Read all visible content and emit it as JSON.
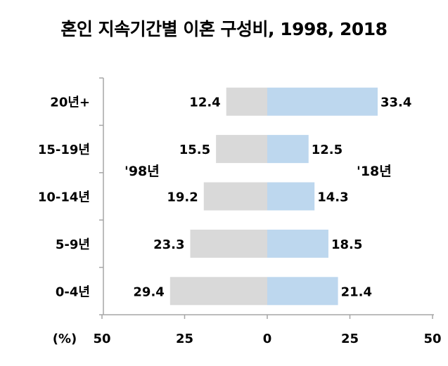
{
  "chart_data": {
    "type": "bar",
    "orientation": "horizontal-butterfly",
    "title": "혼인 지속기간별 이혼 구성비, 1998, 2018",
    "categories": [
      "20년+",
      "15-19년",
      "10-14년",
      "5-9년",
      "0-4년"
    ],
    "series": [
      {
        "name": "'98년",
        "side": "left",
        "color": "#d9d9d9",
        "values": [
          12.4,
          15.5,
          19.2,
          23.3,
          29.4
        ]
      },
      {
        "name": "'18년",
        "side": "right",
        "color": "#bdd7ee",
        "values": [
          33.4,
          12.5,
          14.3,
          18.5,
          21.4
        ]
      }
    ],
    "x_ticks": [
      "50",
      "25",
      "0",
      "25",
      "50"
    ],
    "x_unit": "(%)",
    "xlim": [
      -50,
      50
    ],
    "grid": false
  }
}
